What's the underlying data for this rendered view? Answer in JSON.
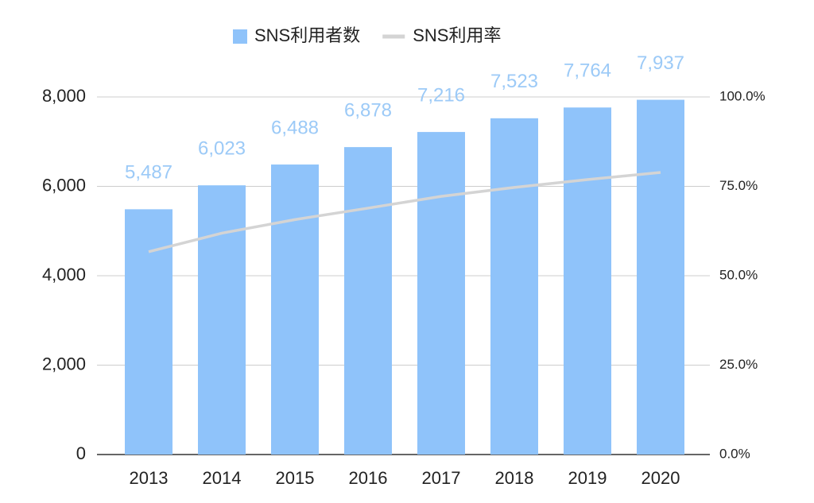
{
  "chart_data": {
    "type": "bar-line",
    "categories": [
      "2013",
      "2014",
      "2015",
      "2016",
      "2017",
      "2018",
      "2019",
      "2020"
    ],
    "series": [
      {
        "name": "SNS利用者数",
        "type": "bar",
        "color": "#8fc3fa",
        "values": [
          5487,
          6023,
          6488,
          6878,
          7216,
          7523,
          7764,
          7937
        ],
        "value_labels": [
          "5,487",
          "6,023",
          "6,488",
          "6,878",
          "7,216",
          "7,523",
          "7,764",
          "7,937"
        ]
      },
      {
        "name": "SNS利用率",
        "type": "line",
        "color": "#d4d4d4",
        "axis": "y2",
        "values": [
          56.7,
          61.9,
          65.7,
          68.9,
          72.2,
          74.7,
          76.9,
          78.9
        ]
      }
    ],
    "ylim": [
      0,
      8000
    ],
    "yticks": [
      0,
      {
        "value": 2000,
        "label": "2,000"
      },
      {
        "value": 4000,
        "label": "4,000"
      },
      {
        "value": 6000,
        "label": "6,000"
      },
      {
        "value": 8000,
        "label": "8,000"
      }
    ],
    "y2lim": [
      0,
      100
    ],
    "y2ticks": [
      {
        "value": 0,
        "label": "0.0%"
      },
      {
        "value": 25,
        "label": "25.0%"
      },
      {
        "value": 50,
        "label": "50.0%"
      },
      {
        "value": 75,
        "label": "75.0%"
      },
      {
        "value": 100,
        "label": "100.0%"
      }
    ],
    "grid": true,
    "legend": "top"
  }
}
